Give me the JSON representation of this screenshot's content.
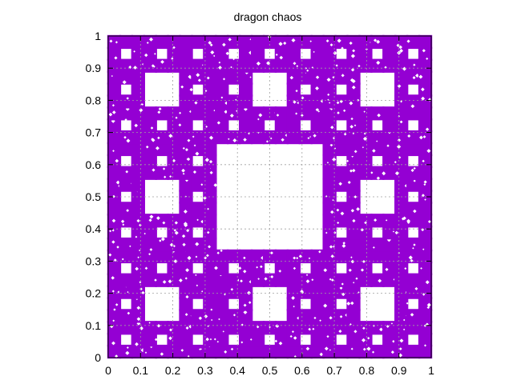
{
  "chart_data": {
    "type": "scatter",
    "title": "dragon chaos",
    "xlabel": "",
    "ylabel": "",
    "xlim": [
      0,
      1
    ],
    "ylim": [
      0,
      1
    ],
    "xticks": [
      "0",
      "0.1",
      "0.2",
      "0.3",
      "0.4",
      "0.5",
      "0.6",
      "0.7",
      "0.8",
      "0.9",
      "1"
    ],
    "yticks": [
      "0",
      "0.1",
      "0.2",
      "0.3",
      "0.4",
      "0.5",
      "0.6",
      "0.7",
      "0.8",
      "0.9",
      "1"
    ],
    "grid": true,
    "legend": "none",
    "point_color": "#9400d3",
    "grid_color": "#a0a0a0",
    "series": [
      {
        "shape": "sierpinski-carpet",
        "depth": 3,
        "extent": [
          0,
          1,
          0,
          1
        ]
      }
    ]
  }
}
